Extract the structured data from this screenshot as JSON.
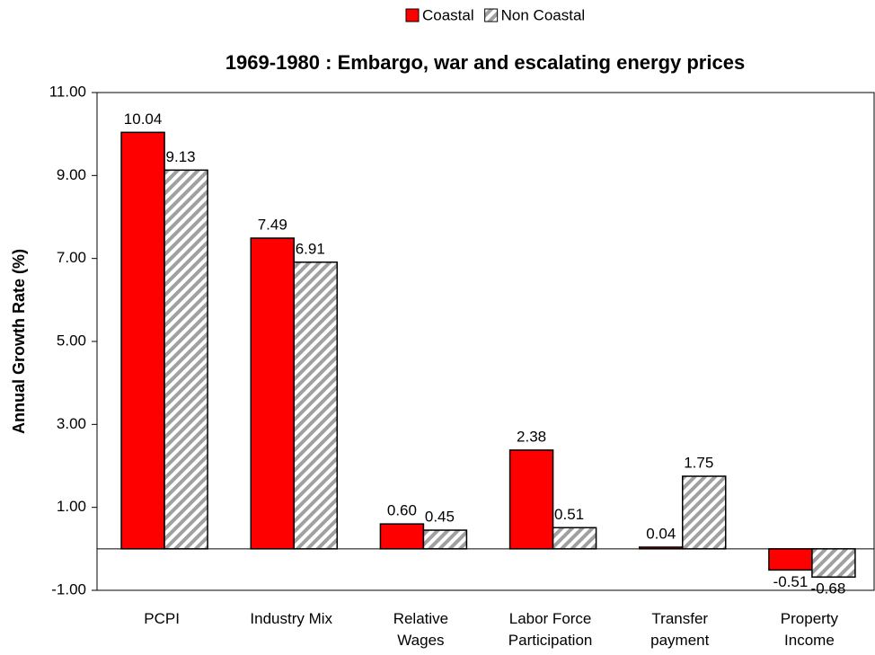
{
  "chart_data": {
    "type": "bar",
    "title": "1969-1980 : Embargo, war and escalating energy prices",
    "y_label": "Annual Growth Rate (%)",
    "categories": [
      "PCPI",
      "Industry Mix",
      "Relative\nWages",
      "Labor Force\nParticipation",
      "Transfer\npayment",
      "Property\nIncome"
    ],
    "series": [
      {
        "name": "Coastal",
        "color": "#ff0000",
        "pattern": "solid",
        "values": [
          10.04,
          7.49,
          0.6,
          2.38,
          0.04,
          -0.51
        ],
        "value_labels": [
          "10.04",
          "7.49",
          "0.60",
          "2.38",
          "0.04",
          "-0.51"
        ]
      },
      {
        "name": "Non Coastal",
        "color": "#a0a0a0",
        "pattern": "hatch",
        "values": [
          9.13,
          6.91,
          0.45,
          0.51,
          1.75,
          -0.68
        ],
        "value_labels": [
          "9.13",
          "6.91",
          "0.45",
          "0.51",
          "1.75",
          "-0.68"
        ]
      }
    ],
    "ylim": [
      -1,
      11
    ],
    "yticks": [
      {
        "value": -1,
        "label": "-1.00"
      },
      {
        "value": 1,
        "label": "1.00"
      },
      {
        "value": 3,
        "label": "3.00"
      },
      {
        "value": 5,
        "label": "5.00"
      },
      {
        "value": 7,
        "label": "7.00"
      },
      {
        "value": 9,
        "label": "9.00"
      },
      {
        "value": 11,
        "label": "11.00"
      }
    ],
    "grid": false,
    "legend": "top"
  }
}
